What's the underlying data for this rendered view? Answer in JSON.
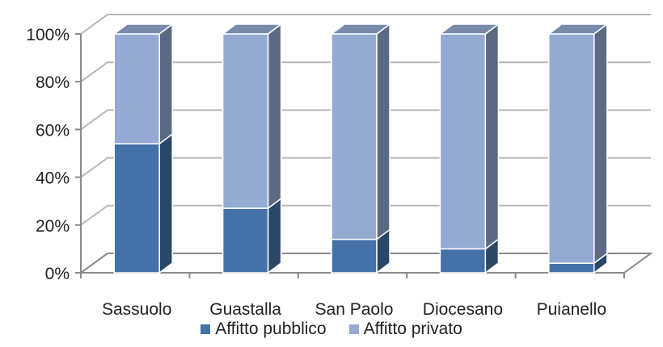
{
  "chart_data": {
    "type": "bar",
    "stacked": "percent",
    "categories": [
      "Sassuolo",
      "Guastalla",
      "San Paolo",
      "Diocesano",
      "Puianello"
    ],
    "series": [
      {
        "name": "Affitto pubblico",
        "values": [
          54,
          27,
          14,
          10,
          4
        ],
        "color": "#4472a8"
      },
      {
        "name": "Affitto privato",
        "values": [
          46,
          73,
          86,
          90,
          96
        ],
        "color": "#94aad2"
      }
    ],
    "ylim": [
      0,
      100
    ],
    "yticks": [
      "0%",
      "20%",
      "40%",
      "60%",
      "80%",
      "100%"
    ],
    "grid": true,
    "legend": "bottom",
    "style": "3d"
  }
}
